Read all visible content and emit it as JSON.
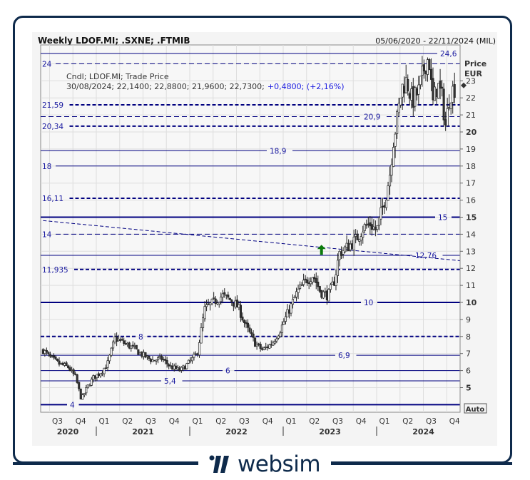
{
  "header": {
    "title": "Weekly LDOF.MI; .SXNE; .FTMIB",
    "date_range": "05/06/2020 - 22/11/2024 (MIL)"
  },
  "legend": {
    "line1": "Cndl; LDOF.MI; Trade Price",
    "line2_values": "30/08/2024; 22,1400; 22,8800; 21,9600; 22,7300;",
    "line2_change": "+0,4800; (+2,16%)"
  },
  "axis": {
    "price_label": "Price",
    "currency_label": "EUR",
    "auto_label": "Auto",
    "y_ticks": [
      "5",
      "6",
      "7",
      "8",
      "9",
      "10",
      "11",
      "12",
      "13",
      "14",
      "15",
      "16",
      "17",
      "18",
      "19",
      "20",
      "21",
      "22",
      "23"
    ],
    "quarters": [
      "Q3",
      "Q4",
      "Q1",
      "Q2",
      "Q3",
      "Q4",
      "Q1",
      "Q2",
      "Q3",
      "Q4",
      "Q1",
      "Q2",
      "Q3",
      "Q4",
      "Q1",
      "Q2",
      "Q3",
      "Q4"
    ],
    "years": [
      "2020",
      "2021",
      "2022",
      "2023",
      "2024"
    ]
  },
  "brand": {
    "name": "websim"
  },
  "colors": {
    "line": "#000080",
    "label": "#1a1aa0",
    "up_arrow": "#0a7a0a",
    "panel": "#f4f4f4"
  },
  "chart_data": {
    "type": "candlestick",
    "title": "Weekly LDOF.MI; .SXNE; .FTMIB",
    "ylabel": "Price EUR",
    "ylim": [
      4,
      24.6
    ],
    "xlim": [
      "2020-06-05",
      "2024-11-22"
    ],
    "last_close": 22.73,
    "levels": [
      {
        "price": 24.6,
        "label": "24,6",
        "style": "solid"
      },
      {
        "price": 24,
        "label": "24",
        "style": "dashed"
      },
      {
        "price": 21.59,
        "label": "21,59",
        "style": "dashed-bold"
      },
      {
        "price": 20.9,
        "label": "20,9",
        "style": "dashed"
      },
      {
        "price": 20.34,
        "label": "20,34",
        "style": "dashed-bold"
      },
      {
        "price": 18.9,
        "label": "18,9",
        "style": "solid"
      },
      {
        "price": 18,
        "label": "18",
        "style": "solid"
      },
      {
        "price": 16.11,
        "label": "16,11",
        "style": "dashed-bold"
      },
      {
        "price": 15,
        "label": "15",
        "style": "solid-bold"
      },
      {
        "price": 14,
        "label": "14",
        "style": "dashed"
      },
      {
        "price": 12.76,
        "label": "12,76",
        "style": "solid"
      },
      {
        "price": 11.935,
        "label": "11,935",
        "style": "dashed-bold"
      },
      {
        "price": 10,
        "label": "10",
        "style": "solid-bold"
      },
      {
        "price": 8,
        "label": "8",
        "style": "dashed-bold"
      },
      {
        "price": 6.9,
        "label": "6,9",
        "style": "solid"
      },
      {
        "price": 6,
        "label": "6",
        "style": "solid"
      },
      {
        "price": 5.4,
        "label": "5,4",
        "style": "solid"
      },
      {
        "price": 4,
        "label": "4",
        "style": "solid-bold"
      }
    ],
    "trendline": {
      "from": [
        2020.43,
        14.8
      ],
      "to": [
        2024.89,
        12.45
      ]
    },
    "signal": {
      "type": "up-arrow",
      "t": 2023.41,
      "price": 13.0
    },
    "path": [
      [
        2020.43,
        7.2
      ],
      [
        2020.5,
        6.8
      ],
      [
        2020.6,
        6.4
      ],
      [
        2020.7,
        6.2
      ],
      [
        2020.78,
        5.6
      ],
      [
        2020.84,
        4.3
      ],
      [
        2020.9,
        5.0
      ],
      [
        2020.97,
        5.6
      ],
      [
        2021.05,
        5.9
      ],
      [
        2021.12,
        6.4
      ],
      [
        2021.2,
        7.9
      ],
      [
        2021.3,
        7.6
      ],
      [
        2021.4,
        7.3
      ],
      [
        2021.5,
        6.9
      ],
      [
        2021.6,
        6.6
      ],
      [
        2021.7,
        6.7
      ],
      [
        2021.8,
        6.2
      ],
      [
        2021.9,
        6.0
      ],
      [
        2021.98,
        6.4
      ],
      [
        2022.08,
        7.0
      ],
      [
        2022.16,
        9.6
      ],
      [
        2022.25,
        10.0
      ],
      [
        2022.35,
        10.4
      ],
      [
        2022.45,
        10.1
      ],
      [
        2022.52,
        9.7
      ],
      [
        2022.6,
        8.6
      ],
      [
        2022.7,
        7.6
      ],
      [
        2022.78,
        7.2
      ],
      [
        2022.88,
        7.6
      ],
      [
        2022.97,
        8.4
      ],
      [
        2023.05,
        9.4
      ],
      [
        2023.15,
        10.6
      ],
      [
        2023.25,
        11.3
      ],
      [
        2023.32,
        11.6
      ],
      [
        2023.4,
        10.6
      ],
      [
        2023.48,
        10.4
      ],
      [
        2023.55,
        11.3
      ],
      [
        2023.6,
        12.9
      ],
      [
        2023.7,
        13.3
      ],
      [
        2023.78,
        13.7
      ],
      [
        2023.86,
        14.4
      ],
      [
        2023.93,
        14.6
      ],
      [
        2024.0,
        14.2
      ],
      [
        2024.05,
        15.3
      ],
      [
        2024.1,
        16.3
      ],
      [
        2024.14,
        17.5
      ],
      [
        2024.18,
        19.5
      ],
      [
        2024.22,
        20.8
      ],
      [
        2024.27,
        22.6
      ],
      [
        2024.32,
        23.0
      ],
      [
        2024.38,
        21.8
      ],
      [
        2024.45,
        22.4
      ],
      [
        2024.52,
        24.0
      ],
      [
        2024.56,
        24.4
      ],
      [
        2024.6,
        21.6
      ],
      [
        2024.65,
        22.8
      ],
      [
        2024.7,
        22.0
      ],
      [
        2024.74,
        20.3
      ],
      [
        2024.78,
        22.2
      ],
      [
        2024.85,
        22.73
      ]
    ]
  }
}
